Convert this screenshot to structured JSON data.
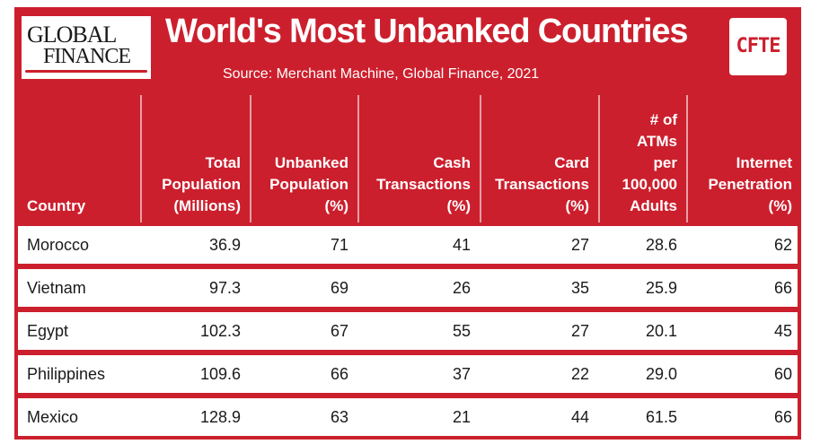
{
  "brand": {
    "left_logo_line1": "GLOBAL",
    "left_logo_line2": "FINANCE",
    "right_logo": "CFTE",
    "accent_color": "#cc1f2d"
  },
  "chart_data": {
    "type": "table",
    "title": "World's Most Unbanked Countries",
    "subtitle": "Source: Merchant Machine, Global Finance, 2021",
    "columns": [
      {
        "key": "country",
        "label_lines": [
          "Country"
        ]
      },
      {
        "key": "population",
        "label_lines": [
          "Total",
          "Population",
          "(Millions)"
        ]
      },
      {
        "key": "unbanked",
        "label_lines": [
          "Unbanked",
          "Population",
          "(%)"
        ]
      },
      {
        "key": "cash",
        "label_lines": [
          "Cash",
          "Transactions",
          "(%)"
        ]
      },
      {
        "key": "card",
        "label_lines": [
          "Card",
          "Transactions",
          "(%)"
        ]
      },
      {
        "key": "atms",
        "label_lines": [
          "# of",
          "ATMs",
          "per",
          "100,000",
          "Adults"
        ]
      },
      {
        "key": "internet",
        "label_lines": [
          "Internet",
          "Penetration",
          "(%)"
        ]
      }
    ],
    "rows": [
      {
        "country": "Morocco",
        "population": "36.9",
        "unbanked": "71",
        "cash": "41",
        "card": "27",
        "atms": "28.6",
        "internet": "62"
      },
      {
        "country": "Vietnam",
        "population": "97.3",
        "unbanked": "69",
        "cash": "26",
        "card": "35",
        "atms": "25.9",
        "internet": "66"
      },
      {
        "country": "Egypt",
        "population": "102.3",
        "unbanked": "67",
        "cash": "55",
        "card": "27",
        "atms": "20.1",
        "internet": "45"
      },
      {
        "country": "Philippines",
        "population": "109.6",
        "unbanked": "66",
        "cash": "37",
        "card": "22",
        "atms": "29.0",
        "internet": "60"
      },
      {
        "country": "Mexico",
        "population": "128.9",
        "unbanked": "63",
        "cash": "21",
        "card": "44",
        "atms": "61.5",
        "internet": "66"
      }
    ]
  }
}
